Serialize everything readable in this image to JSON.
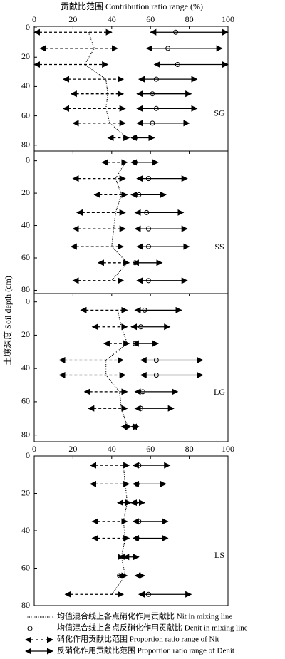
{
  "chart_data": [
    {
      "type": "range",
      "title": "贡献比范围 Contribution ratio range (%)",
      "y_label": "土壤深度 Soil depth (cm)",
      "panel_label": "SG",
      "xlim": [
        0,
        100
      ],
      "xticks": [
        0,
        20,
        40,
        60,
        80,
        100
      ],
      "xtick_labels": true,
      "ylim": [
        -1,
        84
      ],
      "yticks": [
        0,
        20,
        40,
        60,
        80
      ],
      "y": [
        3,
        14,
        25,
        35,
        45,
        55,
        65,
        75
      ],
      "series": [
        {
          "values": [
            28,
            31,
            26,
            37,
            38,
            37,
            39,
            48
          ]
        },
        {
          "values": [
            73,
            69,
            74,
            63,
            61,
            63,
            61,
            52
          ]
        },
        {
          "low": [
            0,
            3,
            0,
            15,
            19,
            15,
            20,
            38
          ],
          "high": [
            40,
            43,
            38,
            46,
            46,
            47,
            47,
            49
          ]
        },
        {
          "low": [
            60,
            58,
            62,
            54,
            53,
            53,
            53,
            50
          ],
          "high": [
            100,
            97,
            100,
            84,
            81,
            84,
            80,
            62
          ]
        }
      ]
    },
    {
      "type": "range",
      "panel_label": "SS",
      "xlim": [
        0,
        100
      ],
      "xticks": [
        0,
        20,
        40,
        60,
        80,
        100
      ],
      "xtick_labels": false,
      "ylim": [
        -6,
        82
      ],
      "yticks": [
        0,
        20,
        40,
        60,
        80
      ],
      "y": [
        1,
        11,
        21,
        32,
        42,
        53,
        63,
        74
      ],
      "series": [
        {
          "values": [
            47,
            42,
            45,
            42,
            41,
            40,
            48,
            40
          ]
        },
        {
          "values": [
            52,
            59,
            54,
            58,
            59,
            59,
            52,
            59
          ]
        },
        {
          "low": [
            35,
            20,
            31,
            22,
            20,
            19,
            33,
            20
          ],
          "high": [
            48,
            47,
            48,
            47,
            47,
            46,
            49,
            46
          ]
        },
        {
          "low": [
            50,
            53,
            50,
            52,
            52,
            53,
            51,
            53
          ],
          "high": [
            64,
            79,
            68,
            77,
            79,
            80,
            66,
            79
          ]
        }
      ]
    },
    {
      "type": "range",
      "panel_label": "LG",
      "xlim": [
        0,
        100
      ],
      "xticks": [
        0,
        20,
        40,
        60,
        80,
        100
      ],
      "xtick_labels": false,
      "ylim": [
        -5,
        84
      ],
      "yticks": [
        0,
        20,
        40,
        60,
        80
      ],
      "y": [
        5,
        15,
        25,
        35,
        44,
        54,
        64,
        75
      ],
      "series": [
        {
          "values": [
            43,
            45,
            48,
            37,
            37,
            44,
            45,
            48
          ]
        },
        {
          "values": [
            57,
            55,
            52,
            63,
            63,
            56,
            55,
            52
          ]
        },
        {
          "low": [
            24,
            30,
            36,
            13,
            13,
            26,
            28,
            45
          ],
          "high": [
            48,
            48,
            49,
            46,
            47,
            48,
            48,
            50
          ]
        },
        {
          "low": [
            52,
            50,
            51,
            55,
            55,
            52,
            52,
            50
          ],
          "high": [
            76,
            70,
            64,
            87,
            87,
            74,
            72,
            54
          ]
        }
      ]
    },
    {
      "type": "range",
      "panel_label": "LS",
      "xlim": [
        0,
        100
      ],
      "xticks": [
        0,
        20,
        40,
        60,
        80,
        100
      ],
      "xtick_labels": true,
      "ylim": [
        0,
        80
      ],
      "yticks": [
        0,
        20,
        40,
        60,
        80
      ],
      "y": [
        5,
        15,
        25,
        35,
        44,
        54,
        64,
        74
      ],
      "series": [
        {
          "values": [
            46,
            47,
            48,
            46,
            47,
            45,
            47,
            40
          ]
        },
        {
          "values": [
            54,
            53,
            52,
            54,
            53,
            46,
            44,
            59
          ]
        },
        {
          "low": [
            29,
            29,
            43,
            30,
            30,
            44,
            43,
            16
          ],
          "high": [
            49,
            49,
            50,
            48,
            49,
            46,
            48,
            46
          ]
        },
        {
          "low": [
            51,
            51,
            50,
            51,
            51,
            46,
            52,
            54
          ],
          "high": [
            70,
            68,
            57,
            69,
            69,
            54,
            57,
            81
          ]
        }
      ]
    }
  ],
  "legend": {
    "entries": [
      {
        "name": "均值混合线上各点硝化作用贡献比 Nit in mixing line",
        "color": "#000000"
      },
      {
        "name": "均值混合线上各点反硝化作用贡献比 Denit in mixing line",
        "color": "#000000"
      },
      {
        "name": "硝化作用贡献比范围 Proportion ratio range of Nit",
        "color": "#000000"
      },
      {
        "name": "反硝化作用贡献比范围 Proportion ratio range of Denit",
        "color": "#000000"
      }
    ]
  }
}
